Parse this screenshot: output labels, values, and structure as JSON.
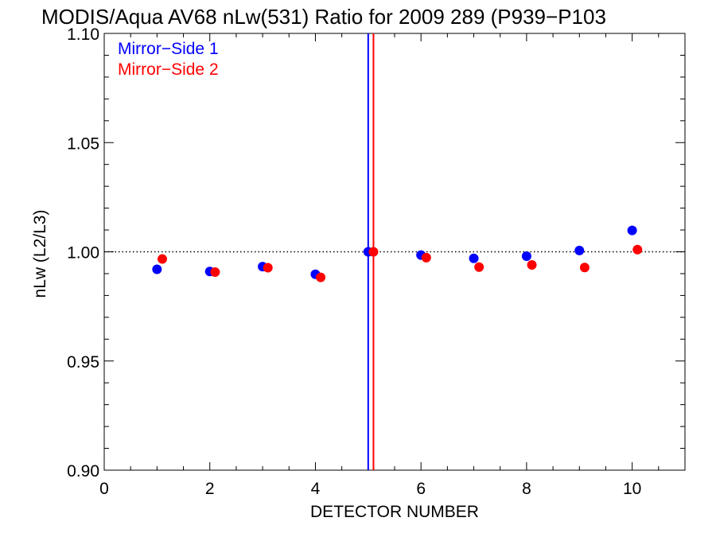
{
  "chart_data": {
    "type": "scatter",
    "title": "MODIS/Aqua AV68 nLw(531) Ratio for 2009 289 (P939−P103",
    "xlabel": "DETECTOR NUMBER",
    "ylabel": "nLw (L2/L3)",
    "xlim": [
      0,
      11
    ],
    "ylim": [
      0.9,
      1.1
    ],
    "x_ticks": [
      0,
      2,
      4,
      6,
      8,
      10
    ],
    "y_ticks": [
      "0.90",
      "0.95",
      "1.00",
      "1.05",
      "1.10"
    ],
    "reference_line_y": 1.0,
    "vertical_lines": [
      {
        "x": 5.0,
        "color": "#0000ff"
      },
      {
        "x": 5.1,
        "color": "#ff0000"
      }
    ],
    "legend_position": "top-left",
    "series": [
      {
        "name": "Mirror−Side 1",
        "color": "#0000ff",
        "x": [
          1,
          2,
          3,
          4,
          5,
          6,
          7,
          8,
          9,
          10
        ],
        "y": [
          0.992,
          0.991,
          0.9932,
          0.9897,
          1.0,
          0.9985,
          0.997,
          0.998,
          1.0006,
          1.0098
        ]
      },
      {
        "name": "Mirror−Side 2",
        "color": "#ff0000",
        "x": [
          1.1,
          2.1,
          3.1,
          4.1,
          5.1,
          6.1,
          7.1,
          8.1,
          9.1,
          10.1
        ],
        "y": [
          0.9967,
          0.9907,
          0.9927,
          0.9883,
          1.0,
          0.9973,
          0.993,
          0.994,
          0.9928,
          1.001
        ]
      }
    ]
  }
}
